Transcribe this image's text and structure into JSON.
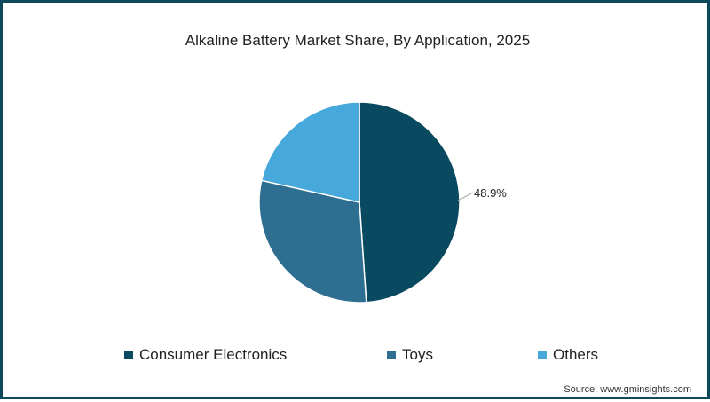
{
  "chart_data": {
    "type": "pie",
    "title": "Alkaline Battery Market Share, By Application, 2025",
    "categories": [
      "Consumer Electronics",
      "Toys",
      "Others"
    ],
    "values": [
      48.9,
      29.6,
      21.5
    ],
    "colors": [
      "#0a4a60",
      "#2e6e91",
      "#47a8dc"
    ],
    "data_labels": [
      {
        "category": "Consumer Electronics",
        "label": "48.9%"
      }
    ],
    "legend_position": "bottom",
    "start_angle": "12 o'clock, clockwise"
  },
  "title": "Alkaline Battery Market Share, By Application, 2025",
  "label_ce": "48.9%",
  "legend": [
    {
      "label": "Consumer Electronics",
      "color": "#0a4a60"
    },
    {
      "label": "Toys",
      "color": "#2e6e91"
    },
    {
      "label": "Others",
      "color": "#47a8dc"
    }
  ],
  "source": "Source: www.gminsights.com",
  "border_color": "#0d4a5c"
}
